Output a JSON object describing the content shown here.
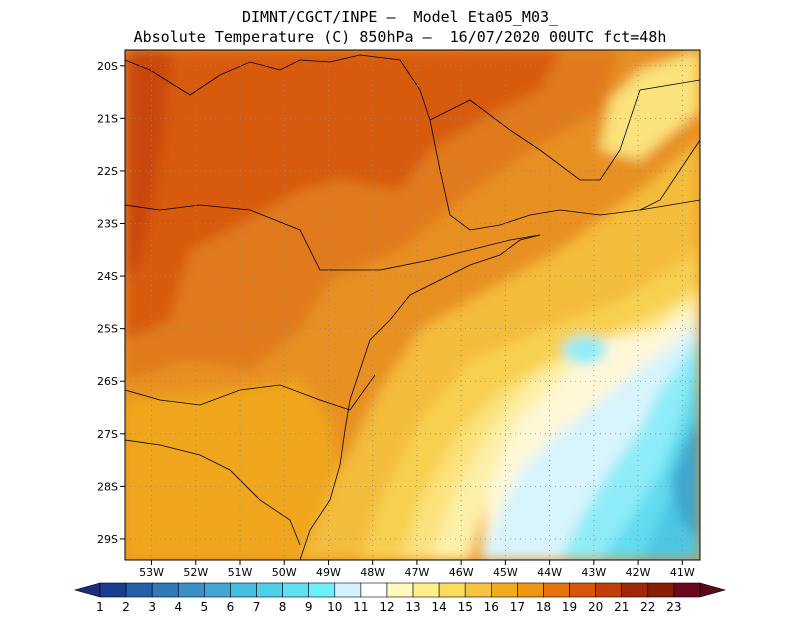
{
  "title": {
    "line1": "DIMNT/CGCT/INPE –  Model Eta05_M03_",
    "line2": "Absolute Temperature (C) 850hPa –  16/07/2020 00UTC fct=48h"
  },
  "map": {
    "lat_labels": [
      "20S",
      "21S",
      "22S",
      "23S",
      "24S",
      "25S",
      "26S",
      "27S",
      "28S",
      "29S"
    ],
    "lon_labels": [
      "53W",
      "52W",
      "51W",
      "50W",
      "49W",
      "48W",
      "47W",
      "46W",
      "45W",
      "44W",
      "43W",
      "42W",
      "41W"
    ],
    "lat_range": [
      -29.4,
      -19.7
    ],
    "lon_range": [
      -53.6,
      -40.6
    ]
  },
  "colorbar": {
    "labels": [
      "1",
      "2",
      "3",
      "4",
      "5",
      "6",
      "7",
      "8",
      "9",
      "10",
      "11",
      "12",
      "13",
      "14",
      "15",
      "16",
      "17",
      "18",
      "19",
      "20",
      "21",
      "22",
      "23"
    ],
    "colors": [
      "#1b3d8f",
      "#2460a8",
      "#2f7ab9",
      "#3a8fc8",
      "#42a5d6",
      "#47bde0",
      "#4fd0ea",
      "#5ee0f2",
      "#6cf0fb",
      "#d2f3fd",
      "#ffffff",
      "#fff9c0",
      "#ffef8a",
      "#fbdc5d",
      "#f5c445",
      "#f2ab1e",
      "#ef9515",
      "#e4720f",
      "#d8560c",
      "#bf3f0a",
      "#a02808",
      "#8a1c08",
      "#6b0a1e"
    ],
    "left_cap_color": "#1b2f7a",
    "right_cap_color": "#5a0a18"
  },
  "palette": {
    "t21": "#c9460b",
    "t20": "#d85a0e",
    "t19": "#e07a1c",
    "t18": "#e89020",
    "t17": "#f0a61c",
    "t16": "#f4bc3a",
    "t15": "#f8d050",
    "t14": "#fbe27a",
    "t13": "#fdf0a8",
    "t12": "#fff8d8",
    "t11": "#d8f4fc",
    "t10": "#8eecf8",
    "t9": "#62dcf0",
    "t8": "#4dc6e4",
    "t7": "#3aa8d2"
  }
}
